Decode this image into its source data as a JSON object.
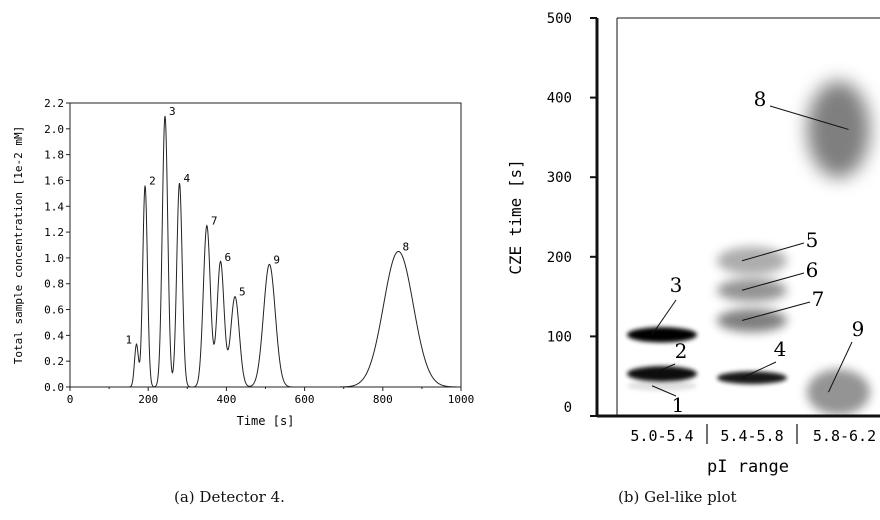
{
  "chart_data": [
    {
      "type": "line",
      "caption": "(a) Detector 4.",
      "xlabel": "Time [s]",
      "ylabel": "Total sample concentration [1e-2 mM]",
      "xlim": [
        0,
        1000
      ],
      "ylim": [
        0,
        2.2
      ],
      "xticks": [
        0,
        200,
        400,
        600,
        800,
        1000
      ],
      "yticks": [
        0.0,
        0.2,
        0.4,
        0.6,
        0.8,
        1.0,
        1.2,
        1.4,
        1.6,
        1.8,
        2.0,
        2.2
      ],
      "ytick_labels": [
        "0.0",
        "0.2",
        "0.4",
        "0.6",
        "0.8",
        "1.0",
        "1.2",
        "1.4",
        "1.6",
        "1.8",
        "2.0",
        "2.2"
      ],
      "grid": false,
      "peaks": [
        {
          "label": "1",
          "x": 170,
          "y": 0.33,
          "sigma": 5
        },
        {
          "label": "2",
          "x": 192,
          "y": 1.56,
          "sigma": 6
        },
        {
          "label": "3",
          "x": 243,
          "y": 2.1,
          "sigma": 7
        },
        {
          "label": "4",
          "x": 280,
          "y": 1.58,
          "sigma": 7
        },
        {
          "label": "7",
          "x": 350,
          "y": 1.25,
          "sigma": 9
        },
        {
          "label": "6",
          "x": 385,
          "y": 0.97,
          "sigma": 9
        },
        {
          "label": "5",
          "x": 422,
          "y": 0.7,
          "sigma": 11
        },
        {
          "label": "9",
          "x": 510,
          "y": 0.95,
          "sigma": 15
        },
        {
          "label": "8",
          "x": 840,
          "y": 1.05,
          "sigma": 38
        }
      ]
    },
    {
      "type": "heatmap",
      "caption": "(b) Gel-like plot",
      "xlabel": "pI range",
      "ylabel": "CZE time [s]",
      "ylim": [
        0,
        500
      ],
      "yticks": [
        0,
        100,
        200,
        300,
        400,
        500
      ],
      "categories": [
        "5.0-5.4",
        "5.4-5.8",
        "5.8-6.2"
      ],
      "bands": [
        {
          "label": "1",
          "column": "5.0-5.4",
          "time": 38,
          "intensity": 0.12,
          "spread": 4
        },
        {
          "label": "2",
          "column": "5.0-5.4",
          "time": 53,
          "intensity": 0.95,
          "spread": 6
        },
        {
          "label": "3",
          "column": "5.0-5.4",
          "time": 102,
          "intensity": 1.0,
          "spread": 6
        },
        {
          "label": "4",
          "column": "5.4-5.8",
          "time": 48,
          "intensity": 0.9,
          "spread": 5
        },
        {
          "label": "7",
          "column": "5.4-5.8",
          "time": 120,
          "intensity": 0.5,
          "spread": 9
        },
        {
          "label": "6",
          "column": "5.4-5.8",
          "time": 158,
          "intensity": 0.42,
          "spread": 9
        },
        {
          "label": "5",
          "column": "5.4-5.8",
          "time": 195,
          "intensity": 0.32,
          "spread": 11
        },
        {
          "label": "9",
          "column": "5.8-6.2",
          "time": 30,
          "intensity": 0.42,
          "spread": 18
        },
        {
          "label": "8",
          "column": "5.8-6.2",
          "time": 360,
          "intensity": 0.5,
          "spread": 38
        }
      ]
    }
  ]
}
